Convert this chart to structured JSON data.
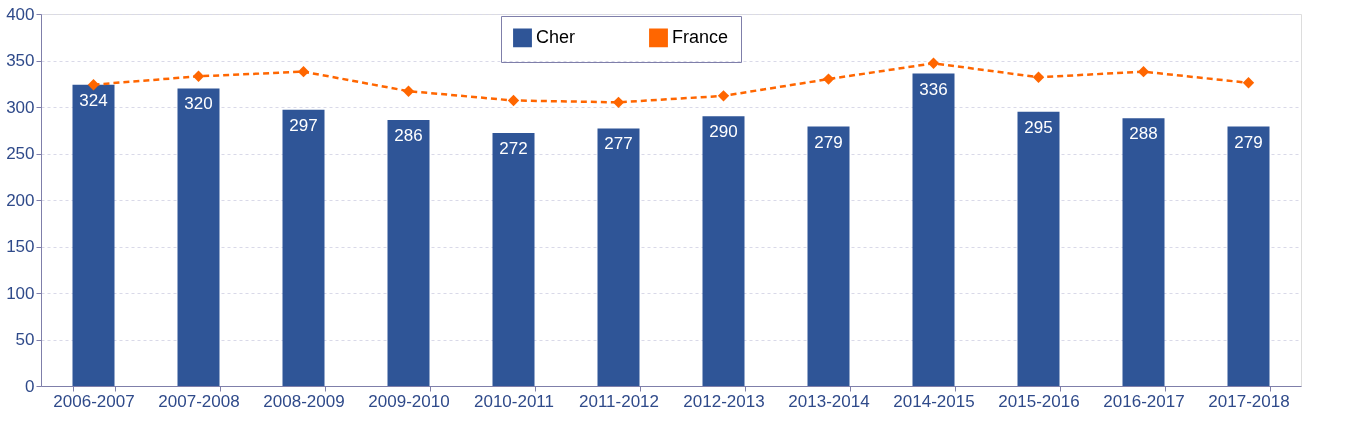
{
  "chart_data": {
    "type": "bar",
    "categories": [
      "2006-2007",
      "2007-2008",
      "2008-2009",
      "2009-2010",
      "2010-2011",
      "2011-2012",
      "2012-2013",
      "2013-2014",
      "2014-2015",
      "2015-2016",
      "2016-2017",
      "2017-2018"
    ],
    "series": [
      {
        "name": "Cher",
        "color": "#2f5597",
        "values": [
          324,
          320,
          297,
          286,
          272,
          277,
          290,
          279,
          336,
          295,
          288,
          279
        ],
        "value_labels": [
          "324",
          "320",
          "297",
          "286",
          "272",
          "277",
          "290",
          "279",
          "336",
          "295",
          "288",
          "279"
        ]
      },
      {
        "name": "France",
        "type": "line",
        "color": "#ff6600",
        "marker": "diamond",
        "line_style": "dashed",
        "values": [
          324,
          333,
          338,
          317,
          307,
          305,
          312,
          330,
          347,
          332,
          338,
          326
        ]
      }
    ],
    "ylim": [
      0,
      400
    ],
    "yticks": [
      0,
      50,
      100,
      150,
      200,
      250,
      300,
      350,
      400
    ],
    "grid": "y",
    "legend": "top"
  }
}
